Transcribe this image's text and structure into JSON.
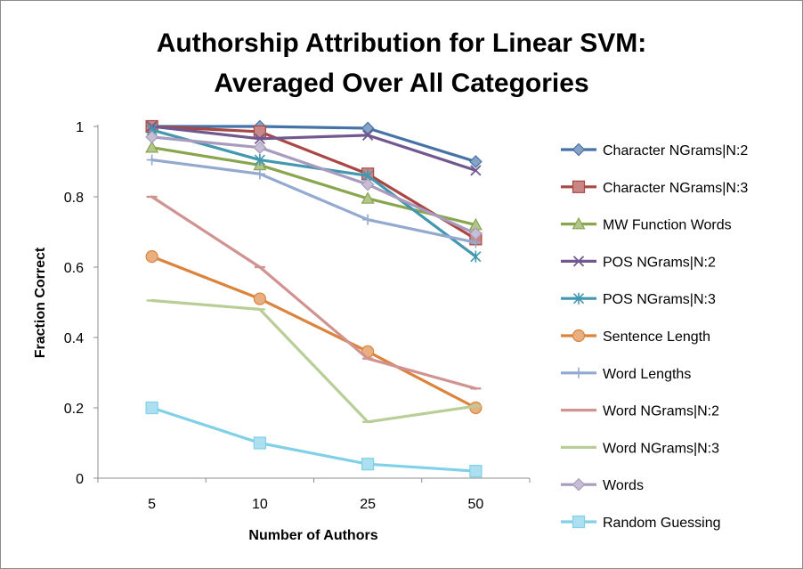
{
  "chart_data": {
    "type": "line",
    "title": [
      "Authorship Attribution for Linear SVM:",
      "Averaged Over All Categories"
    ],
    "xlabel": "Number of Authors",
    "ylabel": "Fraction Correct",
    "categories": [
      "5",
      "10",
      "25",
      "50"
    ],
    "ylim": [
      0,
      1
    ],
    "yticks": [
      "0",
      "0.2",
      "0.4",
      "0.6",
      "0.8",
      "1"
    ],
    "grid": false,
    "legend_position": "right",
    "series": [
      {
        "name": "Character NGrams|N:2",
        "color": "#4572a7",
        "marker": "diamond",
        "values": [
          1.0,
          1.0,
          0.995,
          0.9
        ]
      },
      {
        "name": "Character NGrams|N:3",
        "color": "#aa4643",
        "marker": "square",
        "values": [
          1.0,
          0.985,
          0.865,
          0.68
        ]
      },
      {
        "name": "MW Function Words",
        "color": "#89a54e",
        "marker": "triangle",
        "values": [
          0.94,
          0.89,
          0.795,
          0.72
        ]
      },
      {
        "name": "POS NGrams|N:2",
        "color": "#71588f",
        "marker": "x",
        "values": [
          1.0,
          0.965,
          0.975,
          0.875
        ]
      },
      {
        "name": "POS NGrams|N:3",
        "color": "#4198af",
        "marker": "star",
        "values": [
          0.99,
          0.905,
          0.86,
          0.63
        ]
      },
      {
        "name": "Sentence Length",
        "color": "#db843d",
        "marker": "circle",
        "values": [
          0.63,
          0.51,
          0.36,
          0.2
        ]
      },
      {
        "name": "Word Lengths",
        "color": "#93a9cf",
        "marker": "plus",
        "values": [
          0.905,
          0.865,
          0.735,
          0.67
        ]
      },
      {
        "name": "Word NGrams|N:2",
        "color": "#d19392",
        "marker": "dash",
        "values": [
          0.8,
          0.6,
          0.34,
          0.255
        ]
      },
      {
        "name": "Word NGrams|N:3",
        "color": "#b9cd96",
        "marker": "dash",
        "values": [
          0.505,
          0.48,
          0.16,
          0.205
        ]
      },
      {
        "name": "Words",
        "color": "#a99bbd",
        "marker": "diamond",
        "values": [
          0.97,
          0.94,
          0.835,
          0.695
        ]
      },
      {
        "name": "Random Guessing",
        "color": "#80d0e8",
        "marker": "square",
        "values": [
          0.2,
          0.1,
          0.04,
          0.02
        ]
      }
    ]
  }
}
